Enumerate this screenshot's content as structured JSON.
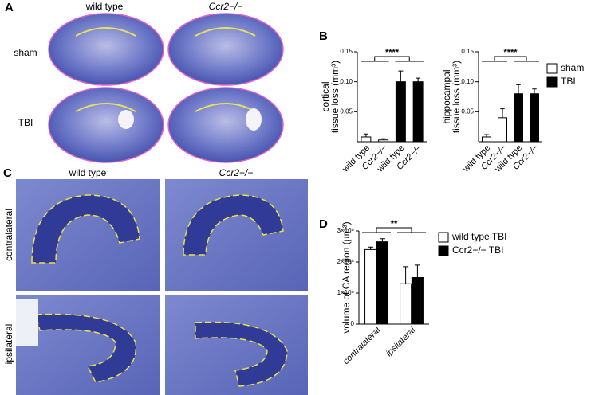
{
  "figure": {
    "panels": [
      "A",
      "B",
      "C",
      "D"
    ],
    "a_columns": [
      "wild type",
      "Ccr2−/−"
    ],
    "a_rows": [
      "sham",
      "TBI"
    ],
    "c_columns": [
      "wild type",
      "Ccr2−/−"
    ],
    "c_rows": [
      "contralateral",
      "ipsilateral"
    ]
  },
  "chart_data": [
    {
      "type": "bar",
      "ylabel": [
        "cortical",
        "tissue loss (mm³)"
      ],
      "categories": [
        "wild type",
        "Ccr2−/−",
        "wild type",
        "Ccr2−/−"
      ],
      "series": [
        {
          "name": "sham",
          "color": "#ffffff",
          "values": [
            0.008,
            0.003,
            null,
            null
          ],
          "errors": [
            0.005,
            0.002,
            null,
            null
          ]
        },
        {
          "name": "TBI",
          "color": "#000000",
          "values": [
            null,
            null,
            0.1,
            0.1
          ],
          "errors": [
            null,
            null,
            0.018,
            0.006
          ]
        }
      ],
      "ylim": [
        0,
        0.15
      ],
      "yticks": [
        0.05,
        {
          "value": 0.1,
          "label": "0.10"
        },
        0.15
      ],
      "significance": "****"
    },
    {
      "type": "bar",
      "ylabel": [
        "hippocampal",
        "tissue loss (mm³)"
      ],
      "categories": [
        "wild type",
        "Ccr2−/−",
        "wild type",
        "Ccr2−/−"
      ],
      "series": [
        {
          "name": "sham",
          "color": "#ffffff",
          "values": [
            0.008,
            0.04,
            null,
            null
          ],
          "errors": [
            0.004,
            0.015,
            null,
            null
          ]
        },
        {
          "name": "TBI",
          "color": "#000000",
          "values": [
            null,
            null,
            0.08,
            0.08
          ],
          "errors": [
            null,
            null,
            0.015,
            0.008
          ]
        }
      ],
      "ylim": [
        0,
        0.15
      ],
      "yticks": [
        0.05,
        {
          "value": 0.1,
          "label": "0.10"
        },
        0.15
      ],
      "significance": "****",
      "legend": true
    },
    {
      "type": "bar",
      "ylabel": [
        "volume of CA region (µm³)"
      ],
      "categories": [
        "contralateral",
        "ipsilateral"
      ],
      "series": [
        {
          "name": "wild type TBI",
          "color": "#ffffff",
          "values": [
            240000000,
            130000000
          ],
          "errors": [
            8000000,
            55000000
          ]
        },
        {
          "name": "Ccr2−/− TBI",
          "color": "#000000",
          "values": [
            265000000,
            150000000
          ],
          "errors": [
            10000000,
            40000000
          ]
        }
      ],
      "ylim": [
        0,
        300000000
      ],
      "yticks": [
        0,
        {
          "value": 100000000,
          "label": "1×10⁸"
        },
        {
          "value": 200000000,
          "label": "2×10⁸"
        },
        {
          "value": 300000000,
          "label": "3×10⁸"
        }
      ],
      "significance": "**",
      "legend": true
    }
  ]
}
